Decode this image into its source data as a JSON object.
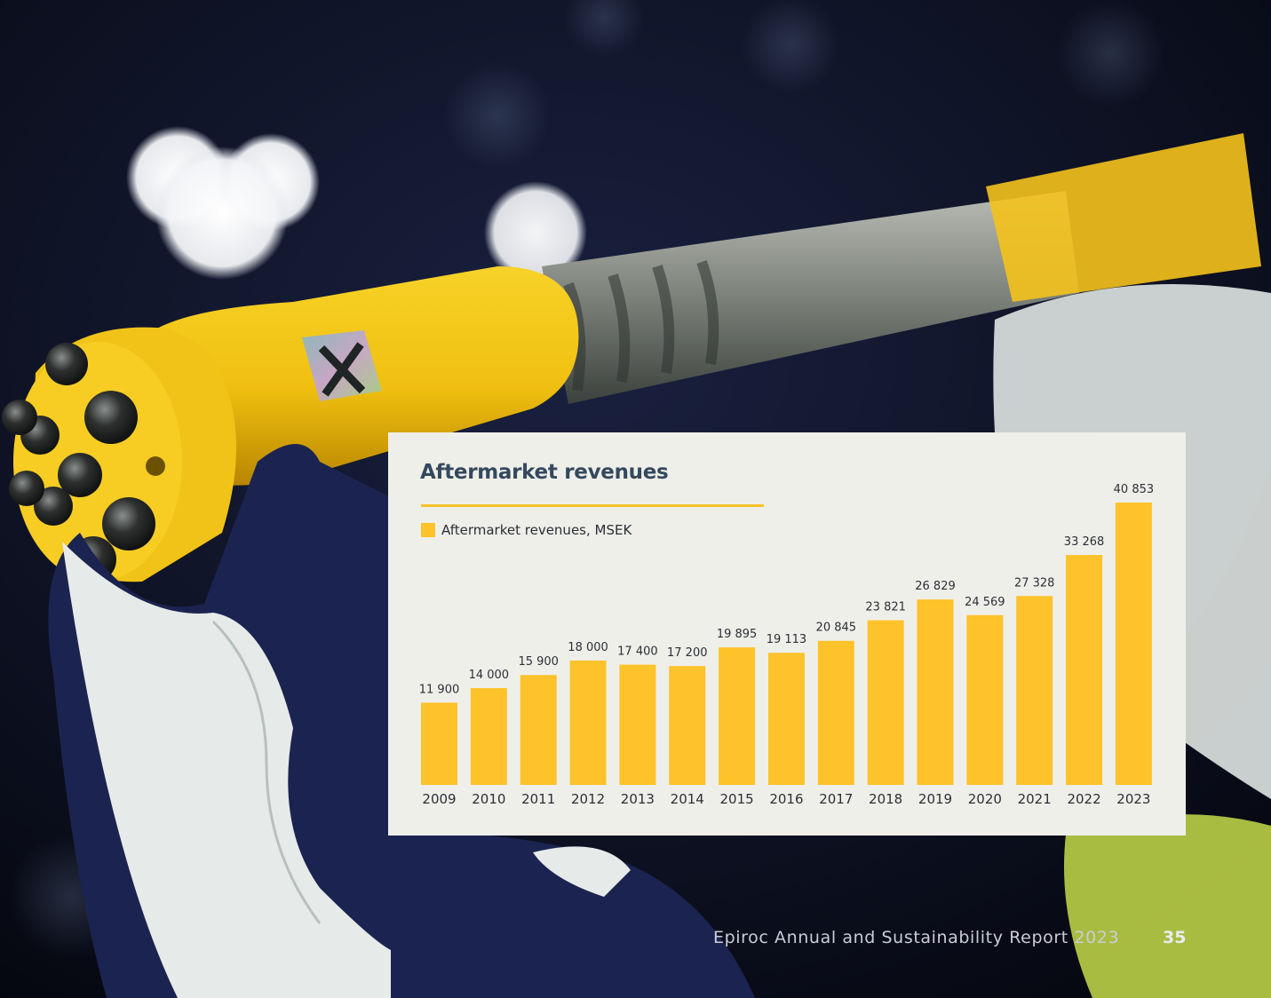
{
  "chart_data": {
    "type": "bar",
    "title": "Aftermarket revenues",
    "legend": [
      "Aftermarket revenues, MSEK"
    ],
    "categories": [
      "2009",
      "2010",
      "2011",
      "2012",
      "2013",
      "2014",
      "2015",
      "2016",
      "2017",
      "2018",
      "2019",
      "2020",
      "2021",
      "2022",
      "2023"
    ],
    "series": [
      {
        "name": "Aftermarket revenues, MSEK",
        "values": [
          11900,
          14000,
          15900,
          18000,
          17400,
          17200,
          19895,
          19113,
          20845,
          23821,
          26829,
          24569,
          27328,
          33268,
          40853
        ],
        "labels": [
          "11 900",
          "14 000",
          "15 900",
          "18 000",
          "17 400",
          "17 200",
          "19 895",
          "19 113",
          "20 845",
          "23 821",
          "26 829",
          "24 569",
          "27 328",
          "33 268",
          "40 853"
        ]
      }
    ],
    "ylim": [
      0,
      40853
    ],
    "grid": false,
    "legend_placement": "top-left",
    "bar_color": "#fec22a"
  },
  "footer": {
    "report_title": "Epiroc Annual and Sustainability Report 2023",
    "page_number": "35"
  },
  "colors": {
    "card_background": "#efefea",
    "title": "#34495e",
    "accent": "#f7c327"
  }
}
